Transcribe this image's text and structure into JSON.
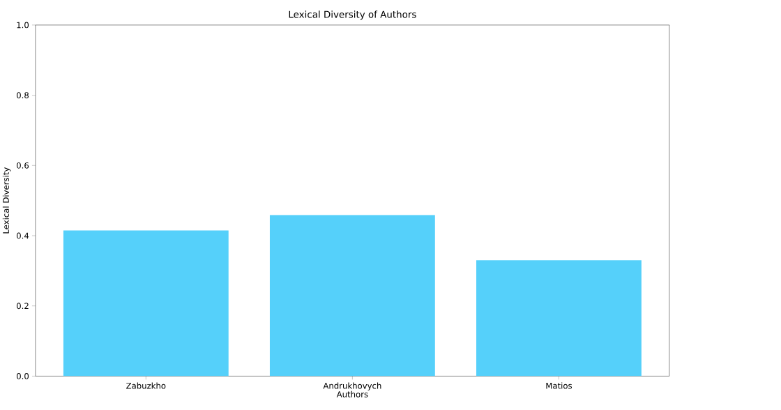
{
  "chart_data": {
    "type": "bar",
    "title": "Lexical Diversity of Authors",
    "xlabel": "Authors",
    "ylabel": "Lexical Diversity",
    "categories": [
      "Zabuzkho",
      "Andrukhovych",
      "Matios"
    ],
    "values": [
      0.415,
      0.459,
      0.33
    ],
    "color": "#55d0fa",
    "ylim": [
      0,
      1
    ],
    "yticks": [
      {
        "value": 0,
        "label": "0.0"
      },
      0.2,
      0.4,
      0.6,
      0.8,
      {
        "value": 1,
        "label": "1.0"
      }
    ]
  }
}
